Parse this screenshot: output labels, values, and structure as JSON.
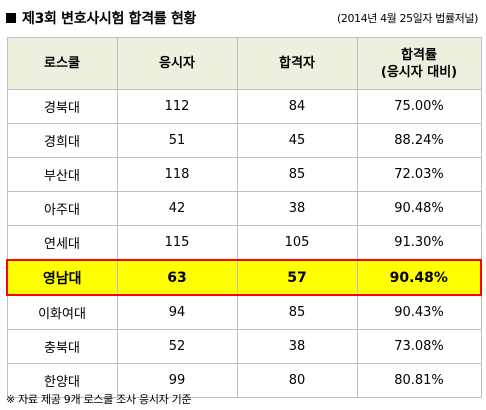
{
  "title": "제3회 변호사시험 합격률 현황",
  "source": "(2014년 4월 25일자 법률저널)",
  "headers": {
    "school": "로스쿨",
    "applicants": "응시자",
    "passed": "합격자",
    "rate_line1": "합격률",
    "rate_line2": "(응시자 대비)"
  },
  "rows": [
    {
      "school": "경북대",
      "applicants": "112",
      "passed": "84",
      "rate": "75.00%"
    },
    {
      "school": "경희대",
      "applicants": "51",
      "passed": "45",
      "rate": "88.24%"
    },
    {
      "school": "부산대",
      "applicants": "118",
      "passed": "85",
      "rate": "72.03%"
    },
    {
      "school": "아주대",
      "applicants": "42",
      "passed": "38",
      "rate": "90.48%"
    },
    {
      "school": "연세대",
      "applicants": "115",
      "passed": "105",
      "rate": "91.30%"
    },
    {
      "school": "영남대",
      "applicants": "63",
      "passed": "57",
      "rate": "90.48%"
    },
    {
      "school": "이화여대",
      "applicants": "94",
      "passed": "85",
      "rate": "90.43%"
    },
    {
      "school": "충북대",
      "applicants": "52",
      "passed": "38",
      "rate": "73.08%"
    },
    {
      "school": "한양대",
      "applicants": "99",
      "passed": "80",
      "rate": "80.81%"
    }
  ],
  "highlight_row": "영남대",
  "colors": {
    "header_bg": "#ebf1de",
    "highlight_bg": "#ffff00",
    "highlight_border": "#ff0000",
    "grid": "#bfbfbf"
  },
  "note": "※ 자료 제공 9개 로스쿨 조사 응시자 기준"
}
